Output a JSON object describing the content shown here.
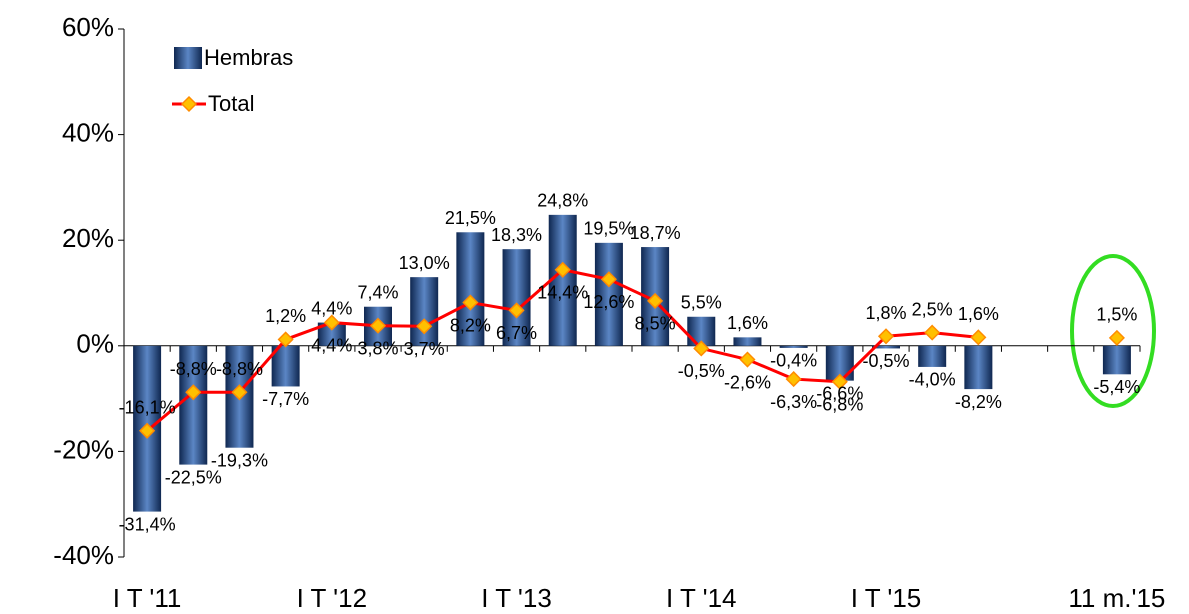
{
  "chart_data": {
    "type": "bar_line",
    "categories": [
      "I T '11",
      null,
      null,
      null,
      "I T '12",
      null,
      null,
      null,
      "I T '13",
      null,
      null,
      null,
      "I T '14",
      null,
      null,
      null,
      "I T '15",
      null,
      null,
      null,
      null,
      "11 m.'15"
    ],
    "series": [
      {
        "name": "Hembras",
        "type": "bar",
        "color": "#2f5597",
        "values": [
          -31.4,
          -22.5,
          -19.3,
          -7.7,
          4.4,
          7.4,
          13.0,
          21.5,
          18.3,
          24.8,
          19.5,
          18.7,
          5.5,
          1.6,
          -0.4,
          -6.6,
          -0.5,
          -4.0,
          -8.2,
          null,
          null,
          -5.4
        ],
        "value_labels": [
          "-31,4%",
          "-22,5%",
          "-19,3%",
          "-7,7%",
          "4,4%",
          "7,4%",
          "13,0%",
          "21,5%",
          "18,3%",
          "24,8%",
          "19,5%",
          "18,7%",
          "5,5%",
          "1,6%",
          "-0,4%",
          "-6,6%",
          "-0,5%",
          "-4,0%",
          "-8,2%",
          null,
          null,
          "-5,4%"
        ]
      },
      {
        "name": "Total",
        "type": "line",
        "color": "#ff0000",
        "marker_color": "#ffc000",
        "values": [
          -16.1,
          -8.8,
          -8.8,
          1.2,
          4.4,
          3.8,
          3.7,
          8.2,
          6.7,
          14.4,
          12.6,
          8.5,
          -0.5,
          -2.6,
          -6.3,
          -6.8,
          1.8,
          2.5,
          1.6,
          null,
          null,
          1.5
        ],
        "value_labels": [
          "-16,1%",
          "-8,8%",
          "-8,8%",
          "1,2%",
          "4,4%",
          "3,8%",
          "3,7%",
          "8,2%",
          "6,7%",
          "14,4%",
          "12,6%",
          "8,5%",
          "-0,5%",
          "-2,6%",
          "-6,3%",
          "-6,8%",
          "1,8%",
          "2,5%",
          "1,6%",
          null,
          null,
          "1,5%"
        ]
      }
    ],
    "ylim": [
      -40,
      60
    ],
    "yticks": [
      {
        "value": -40,
        "label": "-40%"
      },
      {
        "value": -20,
        "label": "-20%"
      },
      {
        "value": 0,
        "label": "0%"
      },
      {
        "value": 20,
        "label": "20%"
      },
      {
        "value": 40,
        "label": "40%"
      },
      {
        "value": 60,
        "label": "60%"
      }
    ],
    "legend": "top-left"
  }
}
